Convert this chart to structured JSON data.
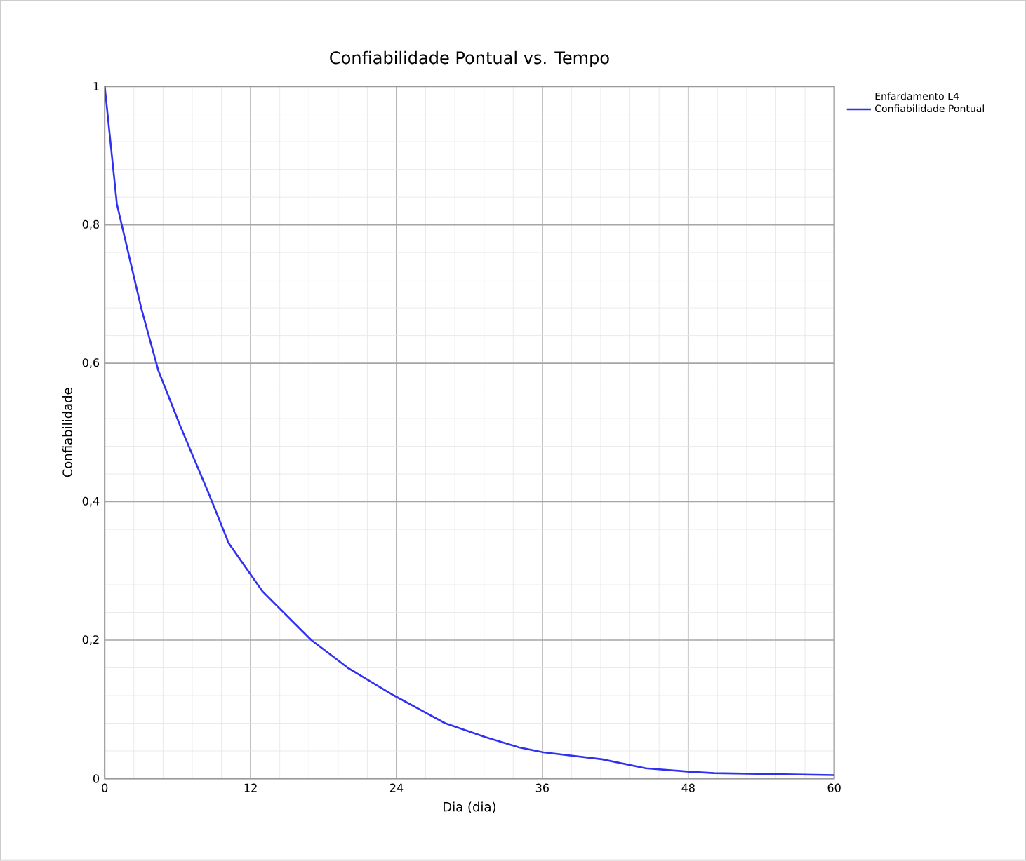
{
  "chart_data": {
    "type": "line",
    "title": "Confiabilidade Pontual vs. Tempo",
    "xlabel": "Dia (dia)",
    "ylabel": "Confiabilidade",
    "legend_title": "Enfardamento L4",
    "x": [
      0,
      1,
      3,
      4.4,
      6.2,
      8.6,
      10.2,
      13,
      17,
      20,
      23.8,
      28,
      31.3,
      34.1,
      36.1,
      40.9,
      44.5,
      48.1,
      50.1,
      60
    ],
    "series": [
      {
        "name": "Confiabilidade Pontual",
        "color": "#3030f0",
        "values": [
          1,
          0.83,
          0.68,
          0.59,
          0.51,
          0.41,
          0.34,
          0.27,
          0.2,
          0.16,
          0.12,
          0.08,
          0.06,
          0.045,
          0.038,
          0.028,
          0.015,
          0.01,
          0.008,
          0.005
        ]
      }
    ],
    "xlim": [
      0,
      60
    ],
    "ylim": [
      0,
      1
    ],
    "xticks": [
      0,
      12,
      24,
      36,
      48,
      60
    ],
    "yticks": [
      0,
      {
        "value": 0.2,
        "label": "0,2"
      },
      {
        "value": 0.4,
        "label": "0,4"
      },
      {
        "value": 0.6,
        "label": "0,6"
      },
      {
        "value": 0.8,
        "label": "0,8"
      },
      1
    ],
    "grid": true,
    "legend": "top right",
    "marker": "none",
    "line_style": "solid"
  }
}
